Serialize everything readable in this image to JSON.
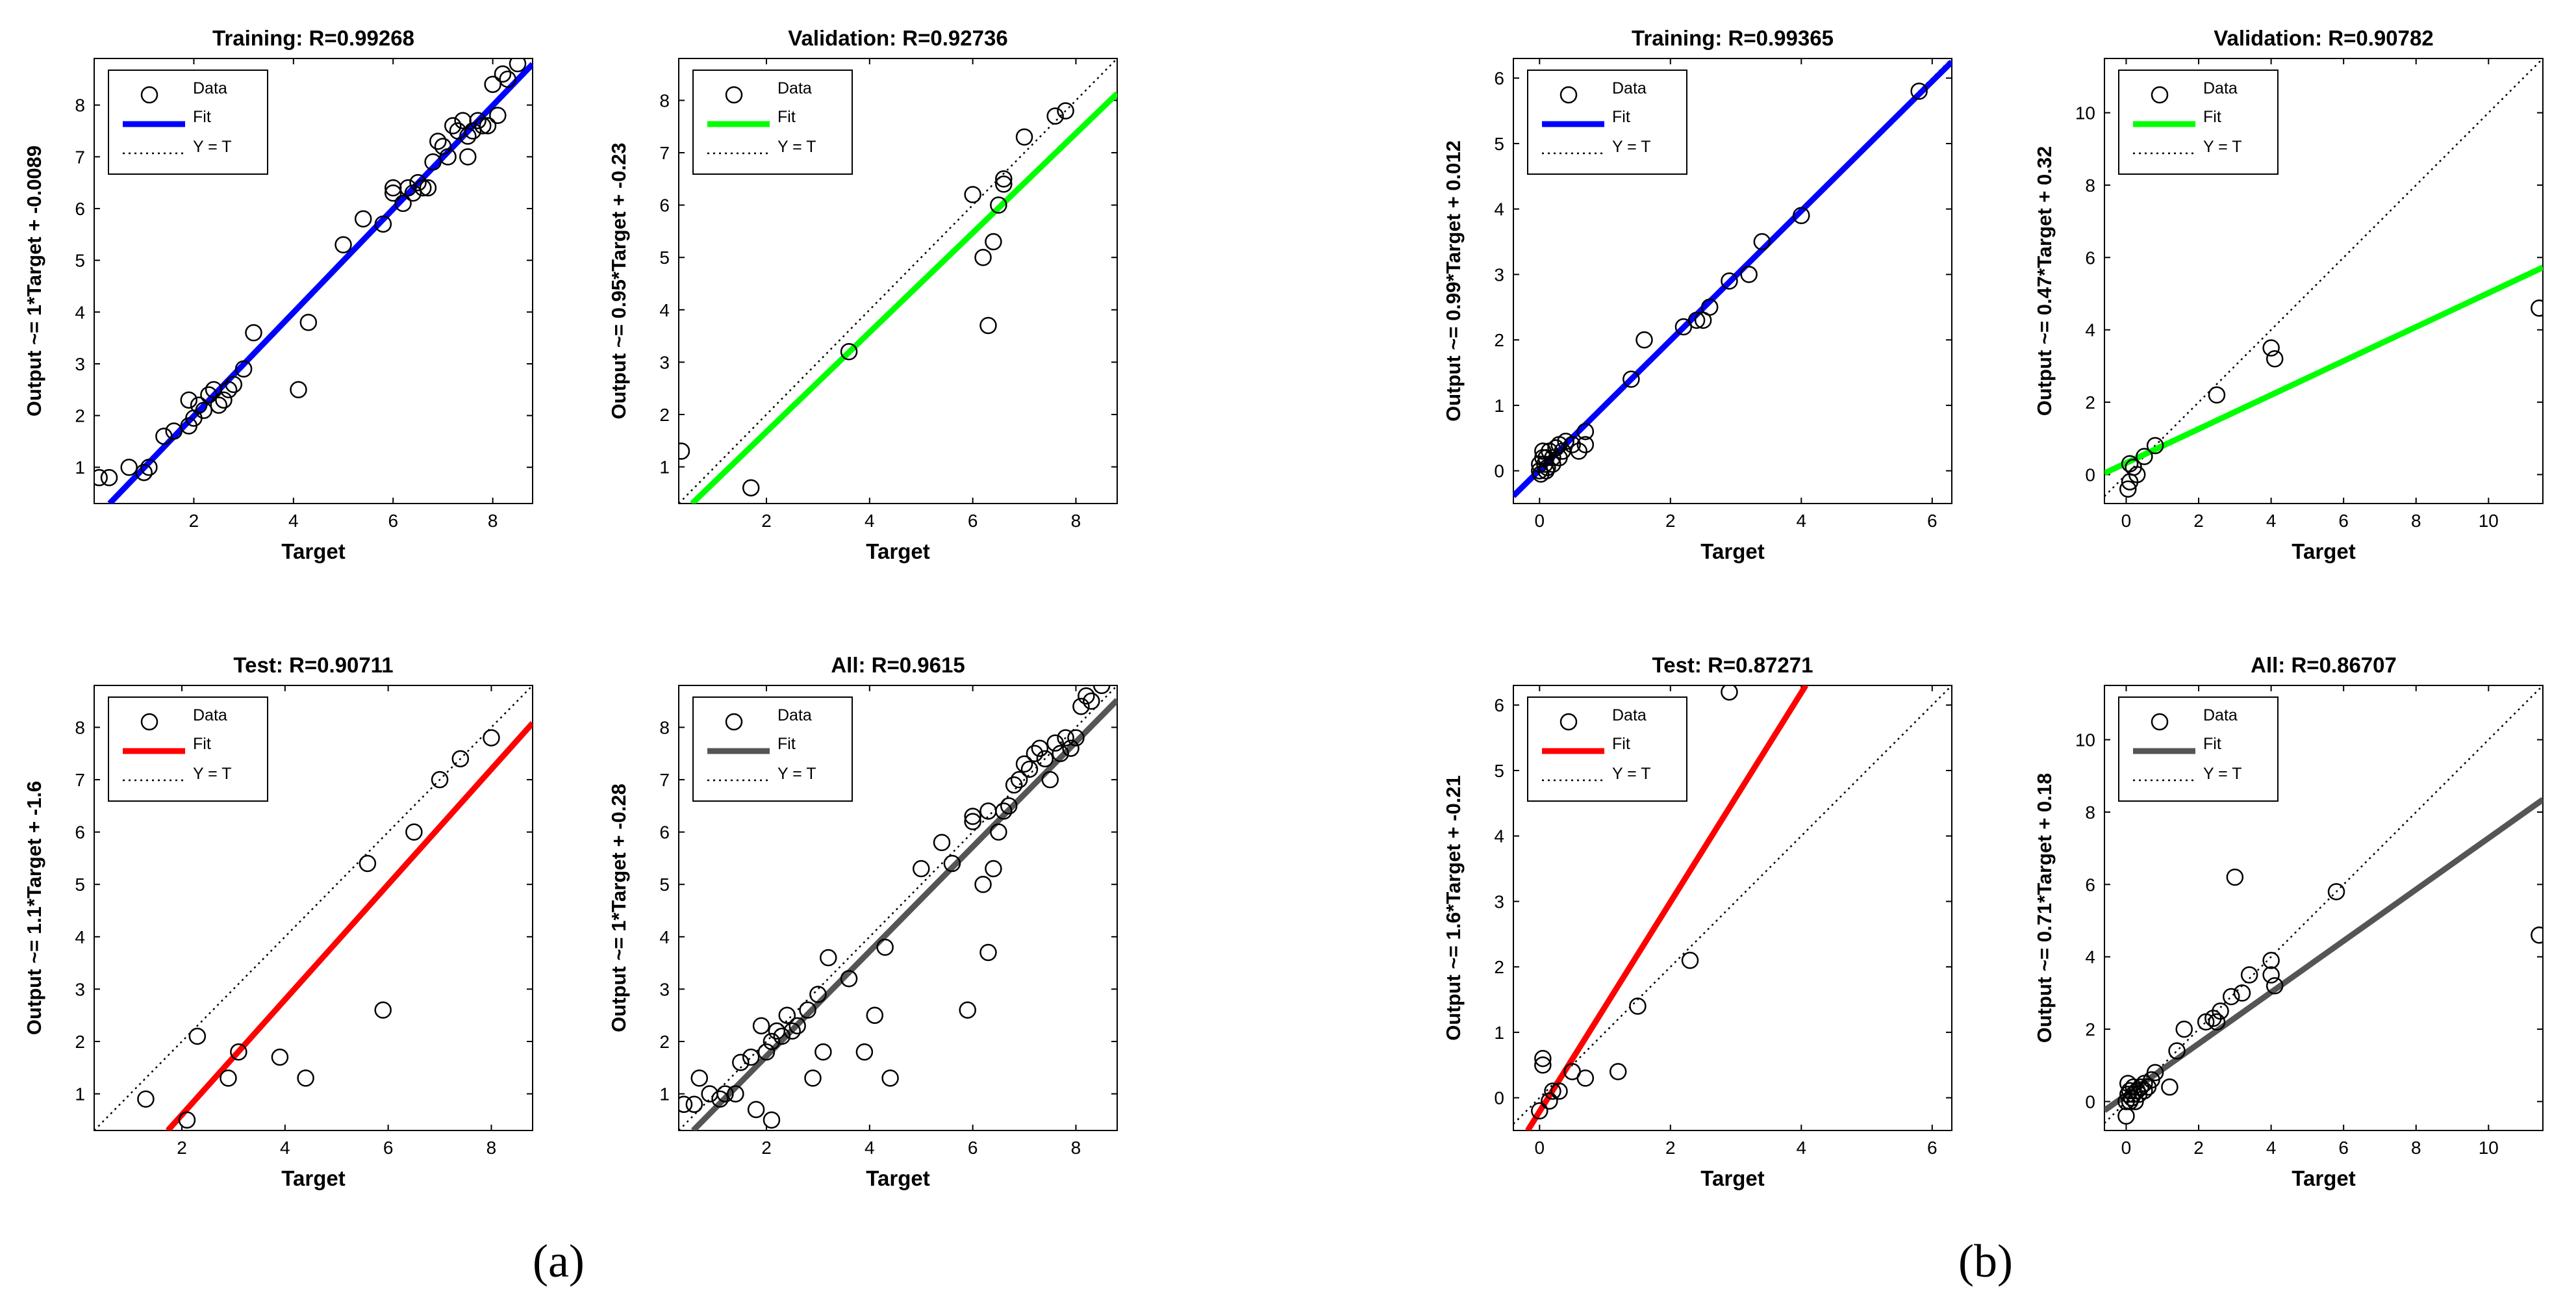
{
  "panel_labels": {
    "a": "(a)",
    "b": "(b)"
  },
  "legend_labels": {
    "data": "Data",
    "fit": "Fit",
    "yt": "Y = T"
  },
  "colors": {
    "training": "#0000ff",
    "validation": "#00ff00",
    "test": "#ff0000",
    "all": "#555555",
    "data_marker": "#000000",
    "ideal": "#000000"
  },
  "chart_data": [
    {
      "type": "scatter",
      "panel": "a",
      "title": "Training: R=0.99268",
      "xlabel": "Target",
      "ylabel": "Output ~= 1*Target + -0.0089",
      "xlim": [
        0,
        8.8
      ],
      "ylim": [
        0.3,
        8.9
      ],
      "xticks": [
        2,
        4,
        6,
        8
      ],
      "yticks": [
        1,
        2,
        3,
        4,
        5,
        6,
        7,
        8
      ],
      "fit": {
        "slope": 1.0,
        "intercept": -0.0089
      },
      "fit_color": "#0000ff",
      "points": [
        [
          0.1,
          0.8
        ],
        [
          0.3,
          0.8
        ],
        [
          0.7,
          1.0
        ],
        [
          1.0,
          0.9
        ],
        [
          1.1,
          1.0
        ],
        [
          1.4,
          1.6
        ],
        [
          1.6,
          1.7
        ],
        [
          1.9,
          2.3
        ],
        [
          1.9,
          1.8
        ],
        [
          2.0,
          1.95
        ],
        [
          2.1,
          2.2
        ],
        [
          2.2,
          2.1
        ],
        [
          2.3,
          2.4
        ],
        [
          2.4,
          2.5
        ],
        [
          2.5,
          2.2
        ],
        [
          2.6,
          2.3
        ],
        [
          2.7,
          2.5
        ],
        [
          2.8,
          2.6
        ],
        [
          3.0,
          2.9
        ],
        [
          3.2,
          3.6
        ],
        [
          4.1,
          2.5
        ],
        [
          4.3,
          3.8
        ],
        [
          5.0,
          5.3
        ],
        [
          5.4,
          5.8
        ],
        [
          5.8,
          5.7
        ],
        [
          6.0,
          6.3
        ],
        [
          6.0,
          6.4
        ],
        [
          6.2,
          6.1
        ],
        [
          6.3,
          6.4
        ],
        [
          6.4,
          6.3
        ],
        [
          6.5,
          6.5
        ],
        [
          6.6,
          6.4
        ],
        [
          6.7,
          6.4
        ],
        [
          6.8,
          6.9
        ],
        [
          6.9,
          7.3
        ],
        [
          7.0,
          7.2
        ],
        [
          7.1,
          7.0
        ],
        [
          7.2,
          7.6
        ],
        [
          7.3,
          7.5
        ],
        [
          7.4,
          7.7
        ],
        [
          7.5,
          7.0
        ],
        [
          7.5,
          7.4
        ],
        [
          7.6,
          7.5
        ],
        [
          7.7,
          7.7
        ],
        [
          7.8,
          7.6
        ],
        [
          7.9,
          7.6
        ],
        [
          8.0,
          8.4
        ],
        [
          8.1,
          7.8
        ],
        [
          8.2,
          8.6
        ],
        [
          8.3,
          8.5
        ],
        [
          8.5,
          8.8
        ]
      ]
    },
    {
      "type": "scatter",
      "panel": "a",
      "title": "Validation: R=0.92736",
      "xlabel": "Target",
      "ylabel": "Output ~= 0.95*Target + -0.23",
      "xlim": [
        0.3,
        8.8
      ],
      "ylim": [
        0.3,
        8.8
      ],
      "xticks": [
        2,
        4,
        6,
        8
      ],
      "yticks": [
        1,
        2,
        3,
        4,
        5,
        6,
        7,
        8
      ],
      "fit": {
        "slope": 0.95,
        "intercept": -0.23
      },
      "fit_color": "#00ff00",
      "points": [
        [
          0.35,
          1.3
        ],
        [
          1.7,
          0.6
        ],
        [
          3.6,
          3.2
        ],
        [
          6.0,
          6.2
        ],
        [
          6.2,
          5.0
        ],
        [
          6.3,
          3.7
        ],
        [
          6.4,
          5.3
        ],
        [
          6.5,
          6.0
        ],
        [
          6.6,
          6.4
        ],
        [
          6.6,
          6.5
        ],
        [
          7.0,
          7.3
        ],
        [
          7.6,
          7.7
        ],
        [
          7.8,
          7.8
        ]
      ]
    },
    {
      "type": "scatter",
      "panel": "b",
      "title": "Training: R=0.99365",
      "xlabel": "Target",
      "ylabel": "Output ~= 0.99*Target + 0.012",
      "xlim": [
        -0.4,
        6.3
      ],
      "ylim": [
        -0.5,
        6.3
      ],
      "xticks": [
        0,
        2,
        4,
        6
      ],
      "yticks": [
        0,
        1,
        2,
        3,
        4,
        5,
        6
      ],
      "fit": {
        "slope": 0.99,
        "intercept": 0.012
      },
      "fit_color": "#0000ff",
      "points": [
        [
          0.0,
          0.0
        ],
        [
          0.0,
          0.1
        ],
        [
          0.02,
          -0.05
        ],
        [
          0.05,
          0.2
        ],
        [
          0.05,
          0.3
        ],
        [
          0.08,
          0.1
        ],
        [
          0.1,
          0.0
        ],
        [
          0.1,
          0.2
        ],
        [
          0.12,
          0.05
        ],
        [
          0.15,
          0.3
        ],
        [
          0.2,
          0.1
        ],
        [
          0.2,
          0.2
        ],
        [
          0.25,
          0.35
        ],
        [
          0.3,
          0.2
        ],
        [
          0.3,
          0.4
        ],
        [
          0.35,
          0.3
        ],
        [
          0.4,
          0.45
        ],
        [
          0.5,
          0.4
        ],
        [
          0.6,
          0.3
        ],
        [
          0.7,
          0.4
        ],
        [
          0.7,
          0.6
        ],
        [
          1.4,
          1.4
        ],
        [
          1.6,
          2.0
        ],
        [
          2.2,
          2.2
        ],
        [
          2.4,
          2.3
        ],
        [
          2.5,
          2.3
        ],
        [
          2.6,
          2.5
        ],
        [
          2.9,
          2.9
        ],
        [
          3.2,
          3.0
        ],
        [
          3.4,
          3.5
        ],
        [
          4.0,
          3.9
        ],
        [
          5.8,
          5.8
        ]
      ]
    },
    {
      "type": "scatter",
      "panel": "b",
      "title": "Validation: R=0.90782",
      "xlabel": "Target",
      "ylabel": "Output ~= 0.47*Target + 0.32",
      "xlim": [
        -0.6,
        11.5
      ],
      "ylim": [
        -0.8,
        11.5
      ],
      "xticks": [
        0,
        2,
        4,
        6,
        8,
        10
      ],
      "yticks": [
        0,
        2,
        4,
        6,
        8,
        10
      ],
      "fit": {
        "slope": 0.47,
        "intercept": 0.32
      },
      "fit_color": "#00ff00",
      "points": [
        [
          0.05,
          -0.4
        ],
        [
          0.1,
          -0.2
        ],
        [
          0.1,
          0.3
        ],
        [
          0.2,
          0.2
        ],
        [
          0.3,
          0.0
        ],
        [
          0.5,
          0.5
        ],
        [
          0.8,
          0.8
        ],
        [
          2.5,
          2.2
        ],
        [
          4.0,
          3.5
        ],
        [
          4.1,
          3.2
        ],
        [
          11.4,
          4.6
        ]
      ]
    },
    {
      "type": "scatter",
      "panel": "a",
      "title": "Test: R=0.90711",
      "xlabel": "Target",
      "ylabel": "Output ~= 1.1*Target + -1.6",
      "xlim": [
        0.3,
        8.8
      ],
      "ylim": [
        0.3,
        8.8
      ],
      "xticks": [
        2,
        4,
        6,
        8
      ],
      "yticks": [
        1,
        2,
        3,
        4,
        5,
        6,
        7,
        8
      ],
      "fit": {
        "slope": 1.1,
        "intercept": -1.6
      },
      "fit_color": "#ff0000",
      "points": [
        [
          1.3,
          0.9
        ],
        [
          2.1,
          0.5
        ],
        [
          2.3,
          2.1
        ],
        [
          2.9,
          1.3
        ],
        [
          3.1,
          1.8
        ],
        [
          3.9,
          1.7
        ],
        [
          4.4,
          1.3
        ],
        [
          5.6,
          5.4
        ],
        [
          5.9,
          2.6
        ],
        [
          6.5,
          6.0
        ],
        [
          7.0,
          7.0
        ],
        [
          7.4,
          7.4
        ],
        [
          8.0,
          7.8
        ]
      ]
    },
    {
      "type": "scatter",
      "panel": "a",
      "title": "All: R=0.9615",
      "xlabel": "Target",
      "ylabel": "Output ~= 1*Target + -0.28",
      "xlim": [
        0.3,
        8.8
      ],
      "ylim": [
        0.3,
        8.8
      ],
      "xticks": [
        2,
        4,
        6,
        8
      ],
      "yticks": [
        1,
        2,
        3,
        4,
        5,
        6,
        7,
        8
      ],
      "fit": {
        "slope": 1.0,
        "intercept": -0.28
      },
      "fit_color": "#555555",
      "points": [
        [
          0.4,
          0.8
        ],
        [
          0.6,
          0.8
        ],
        [
          0.7,
          1.3
        ],
        [
          0.9,
          1.0
        ],
        [
          1.1,
          0.9
        ],
        [
          1.2,
          1.0
        ],
        [
          1.4,
          1.0
        ],
        [
          1.5,
          1.6
        ],
        [
          1.7,
          1.7
        ],
        [
          1.8,
          0.7
        ],
        [
          1.9,
          2.3
        ],
        [
          2.0,
          1.8
        ],
        [
          2.1,
          0.5
        ],
        [
          2.1,
          2.0
        ],
        [
          2.2,
          2.2
        ],
        [
          2.3,
          2.1
        ],
        [
          2.4,
          2.5
        ],
        [
          2.5,
          2.2
        ],
        [
          2.6,
          2.3
        ],
        [
          2.8,
          2.6
        ],
        [
          2.9,
          1.3
        ],
        [
          3.0,
          2.9
        ],
        [
          3.1,
          1.8
        ],
        [
          3.2,
          3.6
        ],
        [
          3.6,
          3.2
        ],
        [
          3.9,
          1.8
        ],
        [
          4.1,
          2.5
        ],
        [
          4.3,
          3.8
        ],
        [
          4.4,
          1.3
        ],
        [
          5.0,
          5.3
        ],
        [
          5.4,
          5.8
        ],
        [
          5.6,
          5.4
        ],
        [
          5.9,
          2.6
        ],
        [
          6.0,
          6.3
        ],
        [
          6.0,
          6.2
        ],
        [
          6.2,
          5.0
        ],
        [
          6.3,
          3.7
        ],
        [
          6.3,
          6.4
        ],
        [
          6.4,
          5.3
        ],
        [
          6.5,
          6.0
        ],
        [
          6.6,
          6.4
        ],
        [
          6.7,
          6.5
        ],
        [
          6.8,
          6.9
        ],
        [
          6.9,
          7.0
        ],
        [
          7.0,
          7.3
        ],
        [
          7.1,
          7.2
        ],
        [
          7.2,
          7.5
        ],
        [
          7.3,
          7.6
        ],
        [
          7.4,
          7.4
        ],
        [
          7.5,
          7.0
        ],
        [
          7.6,
          7.7
        ],
        [
          7.7,
          7.5
        ],
        [
          7.8,
          7.8
        ],
        [
          7.9,
          7.6
        ],
        [
          8.0,
          7.8
        ],
        [
          8.1,
          8.4
        ],
        [
          8.2,
          8.6
        ],
        [
          8.3,
          8.5
        ],
        [
          8.5,
          8.8
        ]
      ]
    },
    {
      "type": "scatter",
      "panel": "b",
      "title": "Test: R=0.87271",
      "xlabel": "Target",
      "ylabel": "Output ~= 1.6*Target + -0.21",
      "xlim": [
        -0.4,
        6.3
      ],
      "ylim": [
        -0.5,
        6.3
      ],
      "xticks": [
        0,
        2,
        4,
        6
      ],
      "yticks": [
        0,
        1,
        2,
        3,
        4,
        5,
        6
      ],
      "fit": {
        "slope": 1.6,
        "intercept": -0.21
      },
      "fit_color": "#ff0000",
      "points": [
        [
          0.0,
          -0.2
        ],
        [
          0.05,
          0.5
        ],
        [
          0.05,
          0.6
        ],
        [
          0.15,
          -0.05
        ],
        [
          0.2,
          0.1
        ],
        [
          0.3,
          0.1
        ],
        [
          0.5,
          0.4
        ],
        [
          0.7,
          0.3
        ],
        [
          1.2,
          0.4
        ],
        [
          1.5,
          1.4
        ],
        [
          2.3,
          2.1
        ],
        [
          2.9,
          6.2
        ]
      ]
    },
    {
      "type": "scatter",
      "panel": "b",
      "title": "All: R=0.86707",
      "xlabel": "Target",
      "ylabel": "Output ~= 0.71*Target + 0.18",
      "xlim": [
        -0.6,
        11.5
      ],
      "ylim": [
        -0.8,
        11.5
      ],
      "xticks": [
        0,
        2,
        4,
        6,
        8,
        10
      ],
      "yticks": [
        0,
        2,
        4,
        6,
        8,
        10
      ],
      "fit": {
        "slope": 0.71,
        "intercept": 0.18
      },
      "fit_color": "#555555",
      "points": [
        [
          0.0,
          -0.4
        ],
        [
          0.0,
          0.0
        ],
        [
          0.05,
          0.2
        ],
        [
          0.05,
          0.5
        ],
        [
          0.1,
          0.0
        ],
        [
          0.1,
          0.3
        ],
        [
          0.15,
          0.1
        ],
        [
          0.2,
          0.2
        ],
        [
          0.2,
          0.4
        ],
        [
          0.25,
          0.0
        ],
        [
          0.3,
          0.3
        ],
        [
          0.35,
          0.2
        ],
        [
          0.4,
          0.4
        ],
        [
          0.5,
          0.3
        ],
        [
          0.5,
          0.5
        ],
        [
          0.6,
          0.4
        ],
        [
          0.7,
          0.6
        ],
        [
          0.8,
          0.8
        ],
        [
          1.2,
          0.4
        ],
        [
          1.4,
          1.4
        ],
        [
          1.6,
          2.0
        ],
        [
          2.2,
          2.2
        ],
        [
          2.4,
          2.3
        ],
        [
          2.5,
          2.2
        ],
        [
          2.6,
          2.5
        ],
        [
          2.9,
          2.9
        ],
        [
          3.0,
          6.2
        ],
        [
          3.2,
          3.0
        ],
        [
          3.4,
          3.5
        ],
        [
          4.0,
          3.9
        ],
        [
          4.0,
          3.5
        ],
        [
          4.1,
          3.2
        ],
        [
          5.8,
          5.8
        ],
        [
          11.4,
          4.6
        ]
      ]
    }
  ]
}
